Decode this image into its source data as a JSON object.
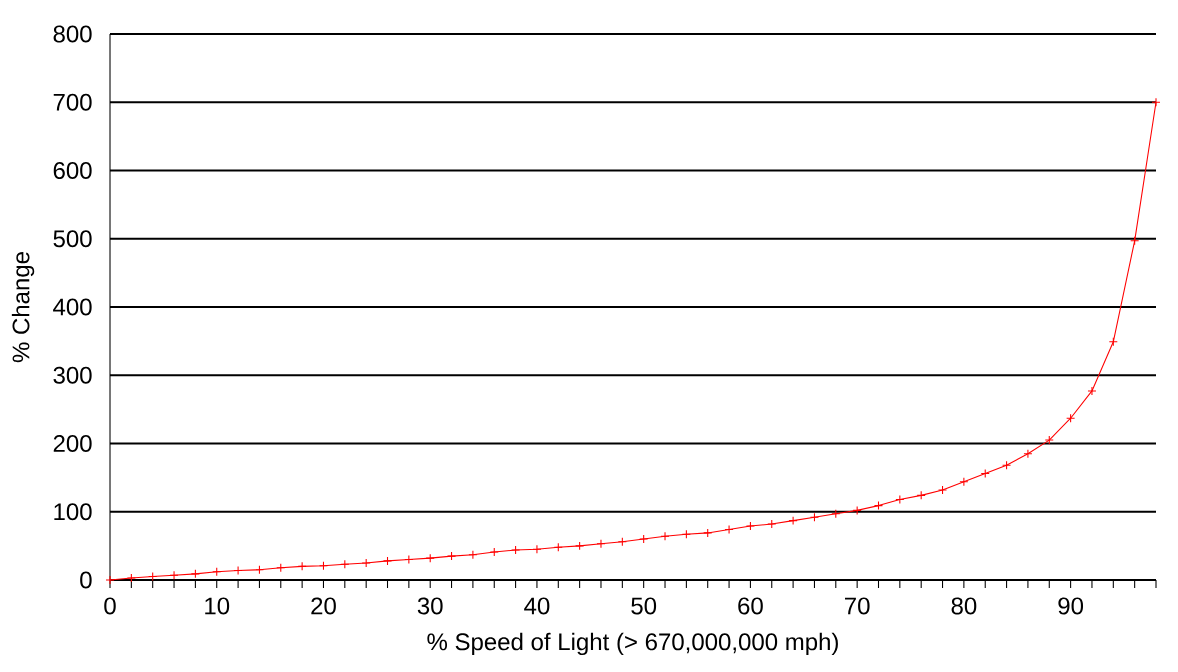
{
  "chart_data": {
    "type": "line",
    "xlabel": "% Speed of Light (> 670,000,000 mph)",
    "ylabel": "% Change",
    "x": [
      0,
      2,
      4,
      6,
      8,
      10,
      12,
      14,
      16,
      18,
      20,
      22,
      24,
      26,
      28,
      30,
      32,
      34,
      36,
      38,
      40,
      42,
      44,
      46,
      48,
      50,
      52,
      54,
      56,
      58,
      60,
      62,
      64,
      66,
      68,
      70,
      72,
      74,
      76,
      78,
      80,
      82,
      84,
      86,
      88,
      90,
      92,
      94,
      96,
      98
    ],
    "series": [
      {
        "color": "#ff0000",
        "values": [
          0,
          3,
          5,
          7,
          9,
          12,
          14,
          15,
          18,
          20,
          21,
          23,
          25,
          28,
          30,
          32,
          35,
          37,
          41,
          44,
          45,
          48,
          50,
          53,
          56,
          60,
          64,
          67,
          69,
          74,
          79,
          82,
          87,
          92,
          97,
          102,
          109,
          118,
          124,
          132,
          144,
          156,
          168,
          185,
          205,
          237,
          277,
          349,
          497,
          700
        ]
      }
    ],
    "xlim": [
      0,
      98
    ],
    "xticks": [
      0,
      {
        "value": 2,
        "label": null
      },
      {
        "value": 4,
        "label": null
      },
      {
        "value": 6,
        "label": null
      },
      {
        "value": 8,
        "label": null
      },
      10,
      {
        "value": 12,
        "label": null
      },
      {
        "value": 14,
        "label": null
      },
      {
        "value": 16,
        "label": null
      },
      {
        "value": 18,
        "label": null
      },
      20,
      {
        "value": 22,
        "label": null
      },
      {
        "value": 24,
        "label": null
      },
      {
        "value": 26,
        "label": null
      },
      {
        "value": 28,
        "label": null
      },
      30,
      {
        "value": 32,
        "label": null
      },
      {
        "value": 34,
        "label": null
      },
      {
        "value": 36,
        "label": null
      },
      {
        "value": 38,
        "label": null
      },
      40,
      {
        "value": 42,
        "label": null
      },
      {
        "value": 44,
        "label": null
      },
      {
        "value": 46,
        "label": null
      },
      {
        "value": 48,
        "label": null
      },
      50,
      {
        "value": 52,
        "label": null
      },
      {
        "value": 54,
        "label": null
      },
      {
        "value": 56,
        "label": null
      },
      {
        "value": 58,
        "label": null
      },
      60,
      {
        "value": 62,
        "label": null
      },
      {
        "value": 64,
        "label": null
      },
      {
        "value": 66,
        "label": null
      },
      {
        "value": 68,
        "label": null
      },
      70,
      {
        "value": 72,
        "label": null
      },
      {
        "value": 74,
        "label": null
      },
      {
        "value": 76,
        "label": null
      },
      {
        "value": 78,
        "label": null
      },
      80,
      {
        "value": 82,
        "label": null
      },
      {
        "value": 84,
        "label": null
      },
      {
        "value": 86,
        "label": null
      },
      {
        "value": 88,
        "label": null
      },
      90,
      {
        "value": 92,
        "label": null
      },
      {
        "value": 94,
        "label": null
      },
      {
        "value": 96,
        "label": null
      },
      {
        "value": 98,
        "label": null
      }
    ],
    "ylim": [
      0,
      800
    ],
    "yticks": [
      0,
      100,
      200,
      300,
      400,
      500,
      600,
      700,
      800
    ],
    "grid": "y",
    "marker": "cross",
    "line_style": "solid"
  }
}
